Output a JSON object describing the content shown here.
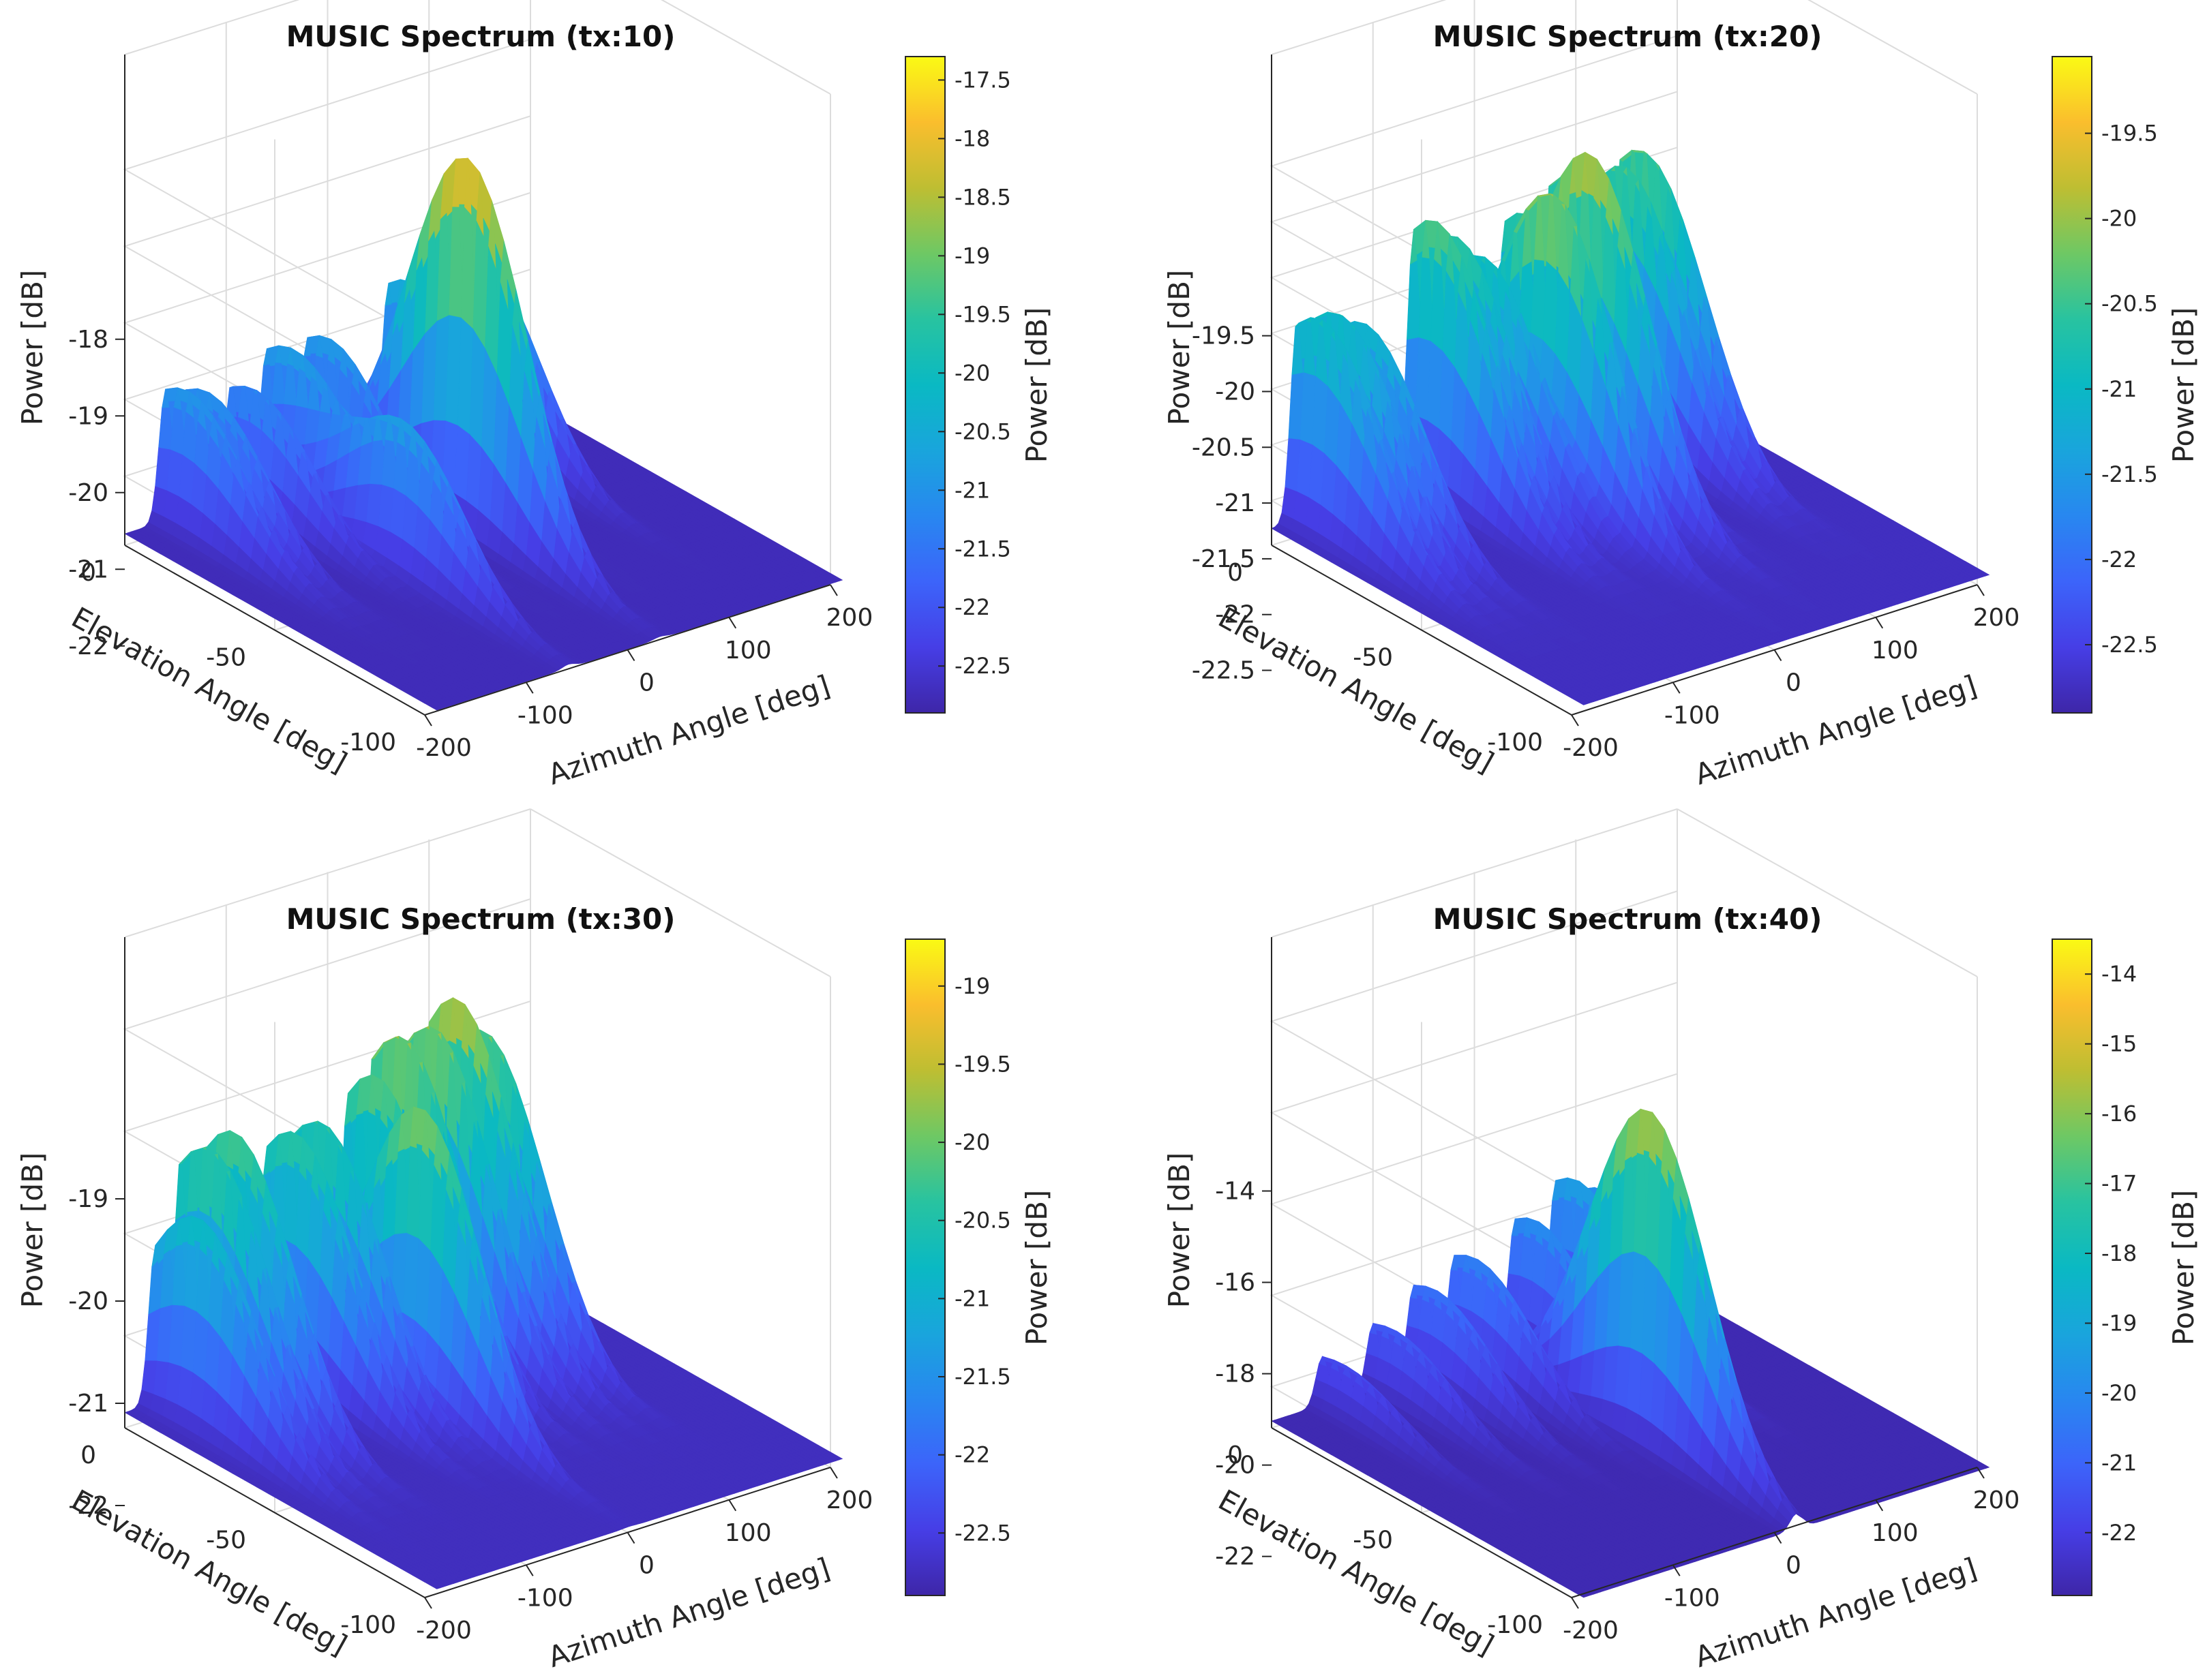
{
  "chart_data": [
    {
      "type": "surface3d",
      "title": "MUSIC Spectrum (tx:10)",
      "xlabel": "Azimuth Angle [deg]",
      "ylabel": "Elevation Angle [deg]",
      "zlabel": "Power [dB]",
      "x_ticks": [
        "-200",
        "-100",
        "0",
        "100",
        "200"
      ],
      "y_ticks": [
        "0",
        "-50",
        "-100"
      ],
      "z_ticks": [
        "-18",
        "-19",
        "-20",
        "-21",
        "-22"
      ],
      "zlim": [
        -22.9,
        -17.3
      ],
      "grid": true,
      "colorbar": {
        "label": "Power [dB]",
        "range": [
          -22.9,
          -17.3
        ],
        "ticks": [
          "-17.5",
          "-18",
          "-18.5",
          "-19",
          "-19.5",
          "-20",
          "-20.5",
          "-21",
          "-21.5",
          "-22",
          "-22.5"
        ]
      },
      "peaks": [
        {
          "az": -160,
          "el": -8,
          "power": -20.9
        },
        {
          "az": -140,
          "el": -8,
          "power": -21.0
        },
        {
          "az": -95,
          "el": -8,
          "power": -21.1
        },
        {
          "az": -70,
          "el": -50,
          "power": -20.8
        },
        {
          "az": -60,
          "el": -8,
          "power": -20.8
        },
        {
          "az": -20,
          "el": -8,
          "power": -20.8
        },
        {
          "az": 20,
          "el": -40,
          "power": -17.9
        },
        {
          "az": 60,
          "el": -8,
          "power": -20.4
        },
        {
          "az": 125,
          "el": -8,
          "power": -20.2
        }
      ]
    },
    {
      "type": "surface3d",
      "title": "MUSIC Spectrum (tx:20)",
      "xlabel": "Azimuth Angle [deg]",
      "ylabel": "Elevation Angle [deg]",
      "zlabel": "Power [dB]",
      "x_ticks": [
        "-200",
        "-100",
        "0",
        "100",
        "200"
      ],
      "y_ticks": [
        "0",
        "-50",
        "-100"
      ],
      "z_ticks": [
        "-19.5",
        "-20",
        "-20.5",
        "-21",
        "-21.5",
        "-22",
        "-22.5"
      ],
      "zlim": [
        -22.9,
        -19.05
      ],
      "grid": true,
      "colorbar": {
        "label": "Power [dB]",
        "range": [
          -22.9,
          -19.05
        ],
        "ticks": [
          "-19.5",
          "-20",
          "-20.5",
          "-21",
          "-21.5",
          "-22",
          "-22.5"
        ]
      },
      "peaks": [
        {
          "az": -175,
          "el": -8,
          "power": -20.8
        },
        {
          "az": -155,
          "el": -8,
          "power": -20.8
        },
        {
          "az": -130,
          "el": -8,
          "power": -21.0
        },
        {
          "az": -60,
          "el": -8,
          "power": -20.3
        },
        {
          "az": -40,
          "el": -8,
          "power": -20.5
        },
        {
          "az": -15,
          "el": -8,
          "power": -20.7
        },
        {
          "az": 5,
          "el": -25,
          "power": -19.9
        },
        {
          "az": 30,
          "el": -8,
          "power": -20.5
        },
        {
          "az": 50,
          "el": -22,
          "power": -19.8
        },
        {
          "az": 75,
          "el": -8,
          "power": -20.2
        },
        {
          "az": 125,
          "el": -8,
          "power": -20.3
        },
        {
          "az": 145,
          "el": -8,
          "power": -20.2
        }
      ]
    },
    {
      "type": "surface3d",
      "title": "MUSIC Spectrum (tx:30)",
      "xlabel": "Azimuth Angle [deg]",
      "ylabel": "Elevation Angle [deg]",
      "zlabel": "Power [dB]",
      "x_ticks": [
        "-200",
        "-100",
        "0",
        "100",
        "200"
      ],
      "y_ticks": [
        "0",
        "-50",
        "-100"
      ],
      "z_ticks": [
        "-19",
        "-20",
        "-21",
        "-22"
      ],
      "zlim": [
        -22.9,
        -18.7
      ],
      "grid": true,
      "colorbar": {
        "label": "Power [dB]",
        "range": [
          -22.9,
          -18.7
        ],
        "ticks": [
          "-19",
          "-19.5",
          "-20",
          "-20.5",
          "-21",
          "-21.5",
          "-22",
          "-22.5"
        ]
      },
      "peaks": [
        {
          "az": -170,
          "el": -15,
          "power": -20.7
        },
        {
          "az": -145,
          "el": -10,
          "power": -20.1
        },
        {
          "az": -120,
          "el": -10,
          "power": -20.1
        },
        {
          "az": -60,
          "el": -10,
          "power": -20.3
        },
        {
          "az": -35,
          "el": -10,
          "power": -20.2
        },
        {
          "az": -10,
          "el": -35,
          "power": -19.8
        },
        {
          "az": 20,
          "el": -10,
          "power": -20.0
        },
        {
          "az": 45,
          "el": -10,
          "power": -19.6
        },
        {
          "az": 75,
          "el": -10,
          "power": -19.6
        },
        {
          "az": 100,
          "el": -10,
          "power": -19.5
        },
        {
          "az": 125,
          "el": -10,
          "power": -19.8
        }
      ]
    },
    {
      "type": "surface3d",
      "title": "MUSIC Spectrum (tx:40)",
      "xlabel": "Azimuth Angle [deg]",
      "ylabel": "Elevation Angle [deg]",
      "zlabel": "Power [dB]",
      "x_ticks": [
        "-200",
        "-100",
        "0",
        "100",
        "200"
      ],
      "y_ticks": [
        "0",
        "-50",
        "-100"
      ],
      "z_ticks": [
        "-14",
        "-16",
        "-18",
        "-20",
        "-22"
      ],
      "zlim": [
        -22.9,
        -13.5
      ],
      "grid": true,
      "colorbar": {
        "label": "Power [dB]",
        "range": [
          -22.9,
          -13.5
        ],
        "ticks": [
          "-14",
          "-15",
          "-16",
          "-17",
          "-18",
          "-19",
          "-20",
          "-21",
          "-22"
        ]
      },
      "peaks": [
        {
          "az": -150,
          "el": -8,
          "power": -21.6
        },
        {
          "az": -100,
          "el": -8,
          "power": -21.2
        },
        {
          "az": -60,
          "el": -8,
          "power": -20.6
        },
        {
          "az": -20,
          "el": -8,
          "power": -20.2
        },
        {
          "az": 10,
          "el": -55,
          "power": -15.4
        },
        {
          "az": 40,
          "el": -8,
          "power": -19.8
        },
        {
          "az": 80,
          "el": -8,
          "power": -19.2
        },
        {
          "az": 105,
          "el": -8,
          "power": -19.5
        }
      ]
    }
  ]
}
